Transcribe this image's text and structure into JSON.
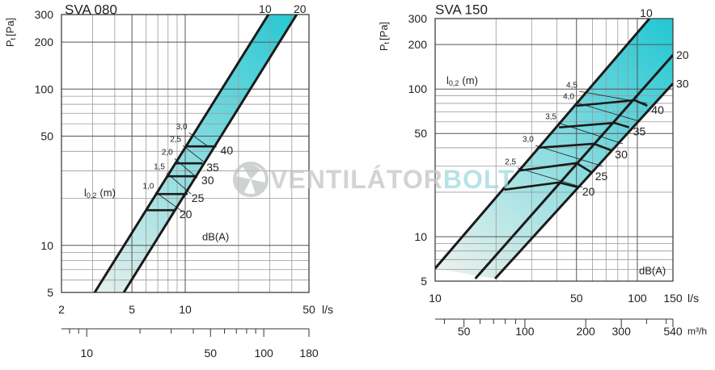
{
  "watermark": {
    "main": "VENTILÁTOR",
    "accent": "BOLT"
  },
  "chart_data": [
    {
      "type": "line",
      "title": "SVA 080",
      "xscale": "log",
      "yscale": "log",
      "ylabel": {
        "symbol": "P",
        "subscript": "t",
        "unit": "[Pa]"
      },
      "xlabel": "l/s",
      "xlim": [
        2,
        50
      ],
      "xticks": [
        2,
        5,
        10,
        50
      ],
      "xminor": [
        3,
        4,
        6,
        7,
        8,
        9,
        20,
        30,
        40
      ],
      "ylim": [
        5,
        300
      ],
      "yticks": [
        5,
        10,
        50,
        100,
        200,
        300
      ],
      "yminor": [
        6,
        7,
        8,
        9,
        20,
        30,
        40,
        60,
        70,
        80,
        90
      ],
      "x2lim": [
        7.2,
        180
      ],
      "x2ticks": [
        10,
        50,
        100,
        180
      ],
      "x2minor": [
        8,
        9,
        20,
        30,
        40,
        60,
        70,
        80,
        90
      ],
      "throw_label": {
        "symbol": "l",
        "subscript": "0,2",
        "unit": "(m)"
      },
      "sound_label": "dB(A)",
      "band_gradient": [
        "#f2f2ee",
        "#22c7d2"
      ],
      "band": [
        {
          "name": "10",
          "x": [
            3.08,
            29.5
          ],
          "values": [
            5,
            300
          ]
        },
        {
          "name": "20",
          "x": [
            4.5,
            42.6
          ],
          "values": [
            5,
            300
          ]
        }
      ],
      "sound": [
        {
          "name": "40",
          "x": [
            10.1,
            15
          ],
          "values": [
            43,
            43
          ]
        },
        {
          "name": "35",
          "x": [
            8.8,
            12.5
          ],
          "values": [
            33.5,
            33.5
          ]
        },
        {
          "name": "30",
          "x": [
            7.9,
            11.7
          ],
          "values": [
            27.7,
            27.7
          ]
        },
        {
          "name": "25",
          "x": [
            6.9,
            10.3
          ],
          "values": [
            21.3,
            21.3
          ]
        },
        {
          "name": "20",
          "x": [
            6.0,
            8.8
          ],
          "values": [
            16.8,
            16.8
          ]
        }
      ],
      "throw": [
        {
          "name": "1,0",
          "x": [
            6.8,
            9.7
          ],
          "values": [
            21.9,
            16.4
          ]
        },
        {
          "name": "1,5",
          "x": [
            7.85,
            10.8
          ],
          "values": [
            29.1,
            21.3
          ]
        },
        {
          "name": "2,0",
          "x": [
            8.7,
            11.7
          ],
          "values": [
            36,
            27
          ]
        },
        {
          "name": "2,5",
          "x": [
            9.7,
            12.7
          ],
          "values": [
            43.6,
            34.3
          ]
        },
        {
          "name": "3,0",
          "x": [
            10.5,
            13.6
          ],
          "values": [
            52.6,
            42.6
          ]
        }
      ]
    },
    {
      "type": "line",
      "title": "SVA 150",
      "xscale": "log",
      "yscale": "log",
      "ylabel": {
        "symbol": "P",
        "subscript": "t",
        "unit": "[Pa]"
      },
      "xlabel": "l/s",
      "x2label": "m³/h",
      "xlim": [
        10,
        150
      ],
      "xticks": [
        10,
        50,
        100,
        150
      ],
      "xminor": [
        20,
        30,
        40,
        60,
        70,
        80,
        90
      ],
      "ylim": [
        5,
        300
      ],
      "yticks": [
        5,
        10,
        50,
        100,
        200,
        300
      ],
      "yminor": [
        6,
        7,
        8,
        9,
        20,
        30,
        40,
        60,
        70,
        80,
        90
      ],
      "x2lim": [
        36,
        540
      ],
      "x2ticks": [
        50,
        100,
        200,
        300,
        540
      ],
      "x2minor": [
        40,
        60,
        70,
        80,
        90,
        400,
        500
      ],
      "throw_label": {
        "symbol": "l",
        "subscript": "0,2",
        "unit": "(m)"
      },
      "sound_label": "dB(A)",
      "band_gradient": [
        "#f2f2ee",
        "#22c7d2"
      ],
      "band": [
        {
          "name": "10",
          "x": [
            10,
            114.8
          ],
          "values": [
            6.1,
            300
          ]
        },
        {
          "name": "20",
          "x": [
            15.8,
            150
          ],
          "values": [
            5.2,
            170
          ]
        },
        {
          "name": "30",
          "x": [
            19.8,
            150
          ],
          "values": [
            5.2,
            109
          ]
        }
      ],
      "sound": [
        {
          "name": "40",
          "x": [
            50,
            97,
            112
          ],
          "values": [
            77,
            84,
            77
          ]
        },
        {
          "name": "35",
          "x": [
            41,
            77,
            91
          ],
          "values": [
            55,
            59,
            55
          ]
        },
        {
          "name": "30",
          "x": [
            32,
            61,
            74
          ],
          "values": [
            40,
            42.6,
            38.5
          ]
        },
        {
          "name": "25",
          "x": [
            26,
            50,
            59
          ],
          "values": [
            28,
            31.5,
            27.4
          ]
        },
        {
          "name": "20",
          "x": [
            22,
            41,
            51
          ],
          "values": [
            20.8,
            23.3,
            21.6
          ]
        }
      ],
      "throw": [
        {
          "name": "2,5",
          "x": [
            25.6,
            53.5
          ],
          "values": [
            29.2,
            21.6
          ]
        },
        {
          "name": "3,0",
          "x": [
            31.3,
            67.3
          ],
          "values": [
            41.5,
            30
          ]
        },
        {
          "name": "3,5",
          "x": [
            40.6,
            84.7
          ],
          "values": [
            59.1,
            42.6
          ]
        },
        {
          "name": "4,0",
          "x": [
            49.7,
            101.9
          ],
          "values": [
            80.9,
            60.6
          ]
        },
        {
          "name": "4,5",
          "x": [
            51.5,
            111.7
          ],
          "values": [
            96.5,
            80
          ]
        }
      ]
    }
  ]
}
